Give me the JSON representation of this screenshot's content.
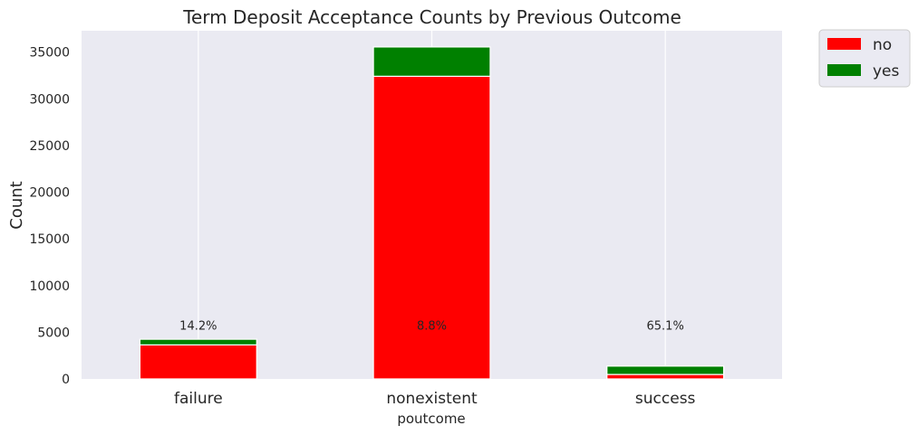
{
  "chart_data": {
    "type": "bar",
    "stacked": true,
    "title": "Term Deposit Acceptance Counts by Previous Outcome",
    "xlabel": "poutcome",
    "ylabel": "Count",
    "categories": [
      "failure",
      "nonexistent",
      "success"
    ],
    "series": [
      {
        "name": "no",
        "values": [
          3647,
          32422,
          479
        ],
        "color": "#ff0000"
      },
      {
        "name": "yes",
        "values": [
          605,
          3141,
          894
        ],
        "color": "#008000"
      }
    ],
    "annotations": [
      "14.2%",
      "8.8%",
      "65.1%"
    ],
    "annotation_y": 5000,
    "ylim": [
      0,
      37300
    ],
    "yticks": [
      0,
      5000,
      10000,
      15000,
      20000,
      25000,
      30000,
      35000
    ],
    "grid": true,
    "legend_position": "outside top-right",
    "background": "#eaeaf2"
  }
}
